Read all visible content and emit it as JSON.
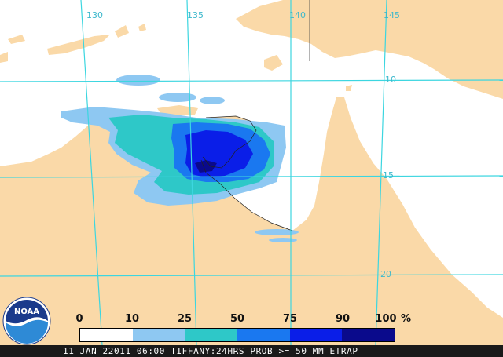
{
  "colors": {
    "land": "#fad9a8",
    "water": "#ffffff",
    "grid": "#3cd6e0",
    "grid_label": "#3cb8cc",
    "outline": "#222222",
    "footer_bg": "#1a1a1a",
    "footer_text": "#ffffff"
  },
  "grid_labels": {
    "lon": [
      "130",
      "135",
      "140",
      "145"
    ],
    "lat": [
      "10",
      "15",
      "20"
    ]
  },
  "legend": {
    "ticks": [
      "0",
      "10",
      "25",
      "50",
      "75",
      "90",
      "100"
    ],
    "unit": "%",
    "colors": [
      "#ffffff",
      "#8ec8f2",
      "#2ec8c8",
      "#1a78f0",
      "#0a1ee8",
      "#0a0a8c"
    ]
  },
  "footer": {
    "text": "11 JAN 22011 06:00 TIFFANY:24HRS PROB >= 50 MM ETRAP"
  },
  "logo": {
    "text": "NOAA",
    "icon": "noaa-logo"
  }
}
